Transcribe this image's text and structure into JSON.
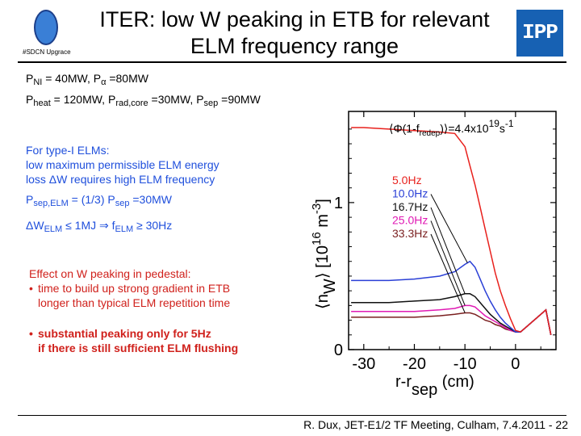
{
  "header": {
    "title_line1": "ITER: low W peaking in ETB for relevant",
    "title_line2": "ELM frequency range",
    "logo_left_text": "#SDCN Upgrace",
    "logo_right_text": "IPP"
  },
  "params": {
    "l1_a": "P",
    "l1_a_sub": "NI",
    "l1_b": " = 40MW, P",
    "l1_b_sub": "α",
    "l1_c": " =80MW",
    "l2_a": "P",
    "l2_a_sub": "heat",
    "l2_b": " = 120MW, P",
    "l2_b_sub": "rad,core",
    "l2_c": " =30MW, P",
    "l2_c_sub": "sep",
    "l2_d": " =90MW"
  },
  "elm": {
    "l1": "For type-I ELMs:",
    "l2": "low maximum permissible ELM energy",
    "l3": "loss ΔW requires high ELM frequency",
    "p_a": "P",
    "p_a_sub": "sep,ELM",
    "p_b": " =  (1/3) P",
    "p_b_sub": "sep",
    "p_c": " =30MW",
    "w_a": "ΔW",
    "w_a_sub": "ELM",
    "w_b": "  ≤ 1MJ    ⇒ f",
    "w_b_sub": "ELM",
    "w_c": " ≥ 30Hz"
  },
  "effect": {
    "heading": "Effect on W peaking in pedestal:",
    "bullet": "•",
    "b1_l1": "time to build up strong gradient in ETB",
    "b1_l2": "longer than typical ELM repetition time",
    "b2_l1": "substantial peaking only for 5Hz",
    "b2_l2": "if there is still sufficient ELM flushing"
  },
  "footer": {
    "text": "R. Dux, JET-E1/2 TF Meeting, Culham, 7.4.2011  -  22"
  },
  "chart_data": {
    "type": "line",
    "annotation": "⟨Φ(1-f",
    "annotation_sub": "redep",
    "annotation_tail": ")⟩=4.4x10",
    "annotation_sup": "19",
    "annotation_unit": "s",
    "annotation_unit_sup": "-1",
    "xlabel": "r-r",
    "xlabel_sub": "sep",
    "xlabel_unit": " (cm)",
    "ylabel": "⟨n",
    "ylabel_sub": "W",
    "ylabel_tail": "⟩ [10",
    "ylabel_sup": "16",
    "ylabel_unit": " m",
    "ylabel_unit_sup": "-3",
    "ylabel_close": "]",
    "xlim": [
      -33,
      8
    ],
    "ylim": [
      0,
      1.62
    ],
    "xticks": [
      "-30",
      "-20",
      "-10",
      "0"
    ],
    "xtick_values": [
      -30,
      -20,
      -10,
      0
    ],
    "yticks": [
      "0",
      "1"
    ],
    "ytick_values": [
      0,
      1
    ],
    "series": [
      {
        "name": "5.0Hz",
        "color": "#e8201c",
        "x": [
          -32.5,
          -30,
          -25,
          -20,
          -15,
          -12,
          -10,
          -9,
          -8,
          -7,
          -6,
          -5,
          -4,
          -3,
          -2,
          -1,
          0,
          1,
          2,
          3,
          4,
          5,
          6,
          7
        ],
        "y": [
          1.51,
          1.51,
          1.5,
          1.49,
          1.48,
          1.47,
          1.38,
          1.25,
          1.12,
          0.97,
          0.82,
          0.67,
          0.52,
          0.4,
          0.3,
          0.21,
          0.13,
          0.12,
          0.15,
          0.18,
          0.21,
          0.24,
          0.27,
          0.1
        ]
      },
      {
        "name": "10.0Hz",
        "color": "#2a3fd6",
        "x": [
          -32.5,
          -30,
          -25,
          -20,
          -15,
          -12,
          -10,
          -9,
          -8,
          -7,
          -6,
          -5,
          -4,
          -3,
          -2,
          -1,
          0,
          1,
          2,
          3,
          4,
          5,
          6,
          7
        ],
        "y": [
          0.47,
          0.47,
          0.47,
          0.48,
          0.5,
          0.53,
          0.58,
          0.6,
          0.56,
          0.48,
          0.4,
          0.33,
          0.27,
          0.22,
          0.18,
          0.15,
          0.12,
          0.12,
          0.15,
          0.18,
          0.21,
          0.24,
          0.27,
          0.1
        ]
      },
      {
        "name": "16.7Hz",
        "color": "#111111",
        "x": [
          -32.5,
          -30,
          -25,
          -20,
          -15,
          -12,
          -10,
          -9,
          -8,
          -7,
          -6,
          -5,
          -4,
          -3,
          -2,
          -1,
          0,
          1,
          2,
          3,
          4,
          5,
          6,
          7
        ],
        "y": [
          0.32,
          0.32,
          0.32,
          0.33,
          0.34,
          0.36,
          0.38,
          0.38,
          0.36,
          0.32,
          0.28,
          0.24,
          0.21,
          0.18,
          0.16,
          0.14,
          0.12,
          0.12,
          0.15,
          0.18,
          0.21,
          0.24,
          0.27,
          0.1
        ]
      },
      {
        "name": "25.0Hz",
        "color": "#e01ab4",
        "x": [
          -32.5,
          -30,
          -25,
          -20,
          -15,
          -12,
          -10,
          -9,
          -8,
          -7,
          -6,
          -5,
          -4,
          -3,
          -2,
          -1,
          0,
          1,
          2,
          3,
          4,
          5,
          6,
          7
        ],
        "y": [
          0.26,
          0.26,
          0.26,
          0.26,
          0.27,
          0.28,
          0.3,
          0.3,
          0.29,
          0.26,
          0.23,
          0.21,
          0.19,
          0.17,
          0.15,
          0.13,
          0.12,
          0.12,
          0.15,
          0.18,
          0.21,
          0.24,
          0.27,
          0.1
        ]
      },
      {
        "name": "33.3Hz",
        "color": "#7a1f1f",
        "x": [
          -32.5,
          -30,
          -25,
          -20,
          -15,
          -12,
          -10,
          -9,
          -8,
          -7,
          -6,
          -5,
          -4,
          -3,
          -2,
          -1,
          0,
          1,
          2,
          3,
          4,
          5,
          6,
          7
        ],
        "y": [
          0.22,
          0.22,
          0.22,
          0.22,
          0.23,
          0.24,
          0.25,
          0.25,
          0.24,
          0.22,
          0.2,
          0.19,
          0.17,
          0.16,
          0.14,
          0.13,
          0.12,
          0.12,
          0.15,
          0.18,
          0.21,
          0.24,
          0.27,
          0.1
        ]
      }
    ]
  }
}
